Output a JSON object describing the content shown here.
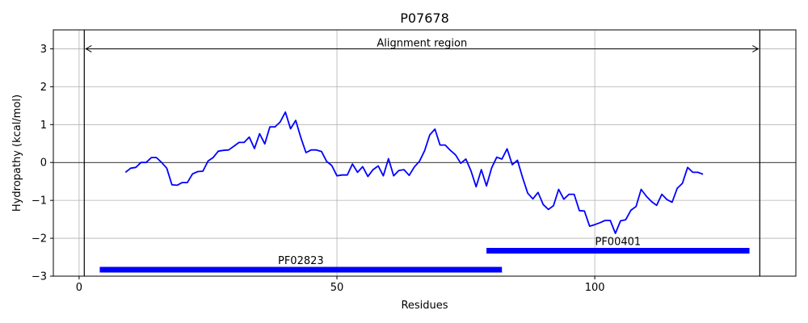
{
  "chart_data": {
    "type": "line",
    "title": "P07678",
    "xlabel": "Residues",
    "ylabel": "Hydropathy (kcal/mol)",
    "xlim": [
      -5,
      139
    ],
    "ylim": [
      -3,
      3.5
    ],
    "xticks": [
      0,
      50,
      100
    ],
    "yticks": [
      -3,
      -2,
      -1,
      0,
      1,
      2,
      3
    ],
    "grid": true,
    "series": [
      {
        "color": "#0000ff",
        "x": [
          9,
          10,
          11,
          12,
          13,
          14,
          15,
          16,
          17,
          18,
          19,
          20,
          21,
          22,
          23,
          24,
          25,
          26,
          27,
          28,
          29,
          30,
          31,
          32,
          33,
          34,
          35,
          36,
          37,
          38,
          39,
          40,
          41,
          42,
          43,
          44,
          45,
          46,
          47,
          48,
          49,
          50,
          51,
          52,
          53,
          54,
          55,
          56,
          57,
          58,
          59,
          60,
          61,
          62,
          63,
          64,
          65,
          66,
          67,
          68,
          69,
          70,
          71,
          72,
          73,
          74,
          75,
          76,
          77,
          78,
          79,
          80,
          81,
          82,
          83,
          84,
          85,
          86,
          87,
          88,
          89,
          90,
          91,
          92,
          93,
          94,
          95,
          96,
          97,
          98,
          99,
          100,
          101,
          102,
          103,
          104,
          105,
          106,
          107,
          108,
          109,
          110,
          111,
          112,
          113,
          114,
          115,
          116,
          117,
          118,
          119,
          120,
          121
        ],
        "values": [
          -0.26,
          -0.15,
          -0.13,
          0.0,
          0.0,
          0.13,
          0.13,
          0.0,
          -0.15,
          -0.59,
          -0.6,
          -0.53,
          -0.53,
          -0.3,
          -0.24,
          -0.23,
          0.04,
          0.13,
          0.3,
          0.32,
          0.33,
          0.43,
          0.53,
          0.53,
          0.67,
          0.37,
          0.76,
          0.49,
          0.94,
          0.94,
          1.07,
          1.33,
          0.89,
          1.11,
          0.66,
          0.26,
          0.33,
          0.33,
          0.29,
          0.03,
          -0.08,
          -0.35,
          -0.33,
          -0.33,
          -0.04,
          -0.26,
          -0.11,
          -0.37,
          -0.19,
          -0.09,
          -0.35,
          0.1,
          -0.35,
          -0.21,
          -0.19,
          -0.34,
          -0.12,
          0.03,
          0.31,
          0.73,
          0.88,
          0.46,
          0.46,
          0.32,
          0.2,
          -0.02,
          0.09,
          -0.22,
          -0.64,
          -0.19,
          -0.62,
          -0.14,
          0.14,
          0.09,
          0.36,
          -0.06,
          0.06,
          -0.4,
          -0.81,
          -0.96,
          -0.79,
          -1.11,
          -1.24,
          -1.14,
          -0.71,
          -0.97,
          -0.84,
          -0.84,
          -1.27,
          -1.28,
          -1.68,
          -1.64,
          -1.59,
          -1.53,
          -1.53,
          -1.87,
          -1.54,
          -1.51,
          -1.26,
          -1.16,
          -0.71,
          -0.89,
          -1.03,
          -1.13,
          -0.84,
          -0.98,
          -1.05,
          -0.68,
          -0.55,
          -0.13,
          -0.26,
          -0.26,
          -0.31
        ]
      }
    ],
    "vlines": [
      1,
      132
    ],
    "hline": 0,
    "annotations": {
      "alignment_label": "Alignment region",
      "alignment_start": 1,
      "alignment_end": 132,
      "alignment_y": 3
    },
    "domains": [
      {
        "name": "PF02823",
        "start": 4,
        "end": 82,
        "y": -2.83,
        "color": "#0000ff"
      },
      {
        "name": "PF00401",
        "start": 79,
        "end": 130,
        "y": -2.33,
        "color": "#0000ff"
      }
    ]
  }
}
